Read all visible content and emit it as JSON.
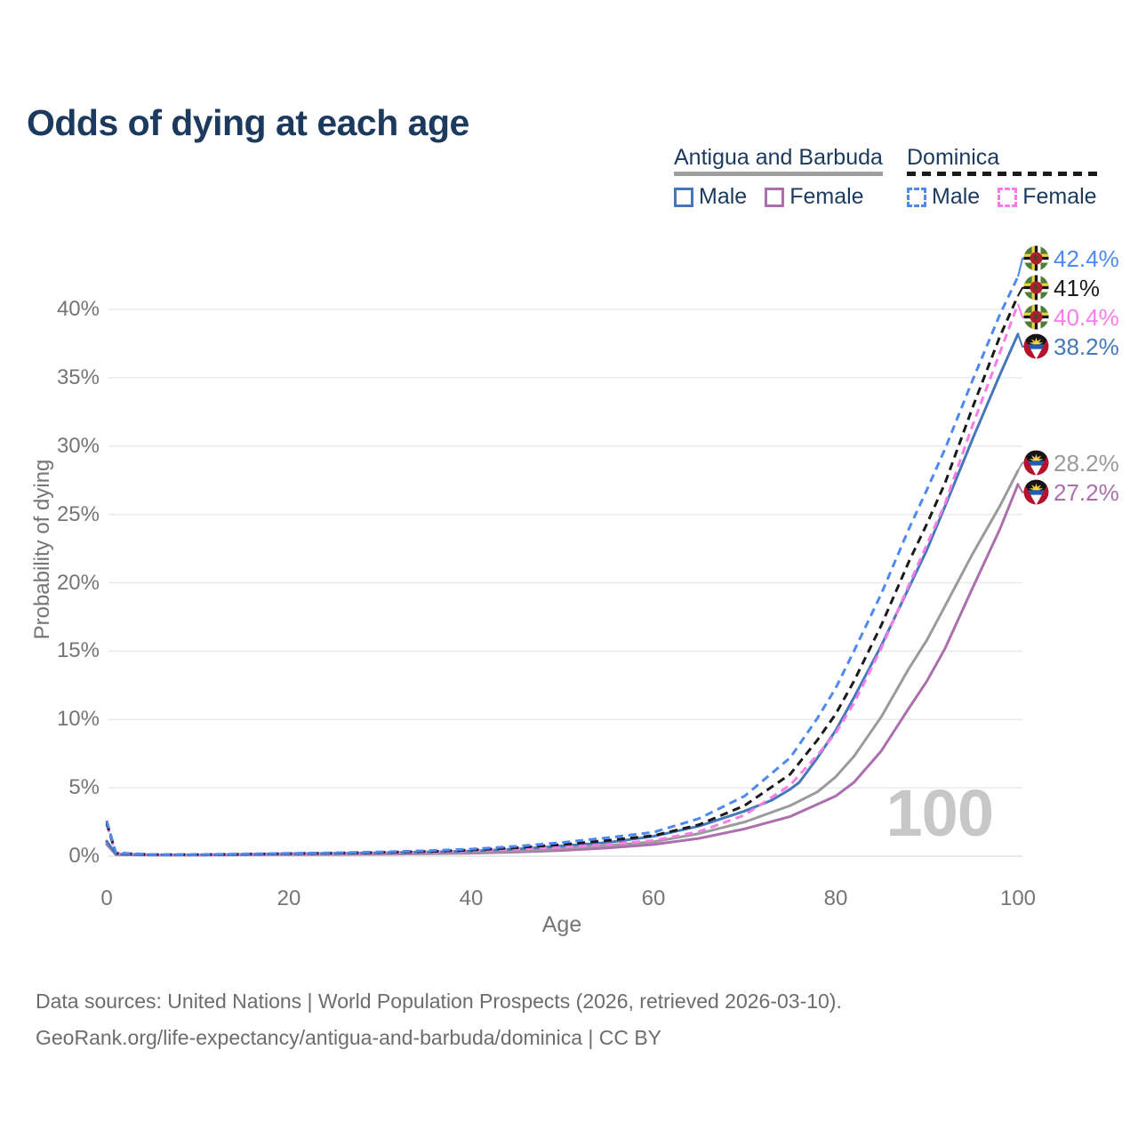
{
  "title": "Odds of dying at each age",
  "legend": {
    "groups": [
      {
        "id": "antigua-and-barbuda",
        "label": "Antigua and Barbuda",
        "line_style": "solid",
        "underline_color": "#9e9e9e",
        "items": [
          {
            "label": "Male",
            "color": "#4478ba"
          },
          {
            "label": "Female",
            "color": "#ab6fad"
          }
        ]
      },
      {
        "id": "dominica",
        "label": "Dominica",
        "line_style": "dashed",
        "underline_color": "#1a1a1a",
        "items": [
          {
            "label": "Male",
            "color": "#4d89f1"
          },
          {
            "label": "Female",
            "color": "#f97ce8"
          }
        ]
      }
    ]
  },
  "chart_data": {
    "type": "line",
    "title": "Odds of dying at each age",
    "xlabel": "Age",
    "ylabel": "Probability of dying",
    "x_ticks": [
      0,
      20,
      40,
      60,
      80,
      100
    ],
    "y_tick_labels": [
      "0%",
      "5%",
      "10%",
      "15%",
      "20%",
      "25%",
      "30%",
      "35%",
      "40%"
    ],
    "xlim": [
      0,
      100
    ],
    "ylim": [
      0,
      44
    ],
    "grid": true,
    "age_watermark": "100",
    "legend_position": "top-right",
    "series": [
      {
        "id": "ab-female",
        "name": "Antigua and Barbuda Female",
        "country": "Antigua and Barbuda",
        "flag": "ag",
        "sex": "Female",
        "color": "#ab6fad",
        "dashed": false,
        "end_label": "27.2%",
        "points": [
          [
            0,
            0.85
          ],
          [
            1,
            0.12
          ],
          [
            5,
            0.08
          ],
          [
            10,
            0.08
          ],
          [
            15,
            0.1
          ],
          [
            20,
            0.12
          ],
          [
            25,
            0.13
          ],
          [
            30,
            0.15
          ],
          [
            35,
            0.18
          ],
          [
            40,
            0.22
          ],
          [
            45,
            0.3
          ],
          [
            50,
            0.42
          ],
          [
            55,
            0.6
          ],
          [
            60,
            0.85
          ],
          [
            65,
            1.3
          ],
          [
            70,
            2.0
          ],
          [
            75,
            2.9
          ],
          [
            78,
            3.8
          ],
          [
            80,
            4.4
          ],
          [
            82,
            5.4
          ],
          [
            85,
            7.7
          ],
          [
            88,
            10.8
          ],
          [
            90,
            12.8
          ],
          [
            92,
            15.2
          ],
          [
            95,
            19.6
          ],
          [
            98,
            23.9
          ],
          [
            100,
            27.2
          ]
        ]
      },
      {
        "id": "ab-total",
        "name": "Antigua and Barbuda",
        "country": "Antigua and Barbuda",
        "flag": "ag",
        "sex": "Both",
        "color": "#9a9a9a",
        "dashed": false,
        "end_label": "28.2%",
        "points": [
          [
            0,
            0.95
          ],
          [
            1,
            0.13
          ],
          [
            5,
            0.09
          ],
          [
            10,
            0.09
          ],
          [
            15,
            0.11
          ],
          [
            20,
            0.14
          ],
          [
            25,
            0.16
          ],
          [
            30,
            0.19
          ],
          [
            35,
            0.22
          ],
          [
            40,
            0.28
          ],
          [
            45,
            0.38
          ],
          [
            50,
            0.55
          ],
          [
            55,
            0.78
          ],
          [
            60,
            1.05
          ],
          [
            65,
            1.65
          ],
          [
            70,
            2.5
          ],
          [
            75,
            3.7
          ],
          [
            78,
            4.7
          ],
          [
            80,
            5.8
          ],
          [
            82,
            7.3
          ],
          [
            85,
            10.2
          ],
          [
            88,
            13.7
          ],
          [
            90,
            15.8
          ],
          [
            92,
            18.3
          ],
          [
            95,
            22.1
          ],
          [
            98,
            25.6
          ],
          [
            100,
            28.2
          ]
        ]
      },
      {
        "id": "ab-male",
        "name": "Antigua and Barbuda Male",
        "country": "Antigua and Barbuda",
        "flag": "ag",
        "sex": "Male",
        "color": "#4478ba",
        "dashed": false,
        "end_label": "38.2%",
        "points": [
          [
            0,
            1.1
          ],
          [
            1,
            0.15
          ],
          [
            5,
            0.1
          ],
          [
            10,
            0.1
          ],
          [
            15,
            0.13
          ],
          [
            20,
            0.18
          ],
          [
            25,
            0.2
          ],
          [
            30,
            0.24
          ],
          [
            35,
            0.3
          ],
          [
            40,
            0.38
          ],
          [
            45,
            0.52
          ],
          [
            50,
            0.75
          ],
          [
            55,
            1.0
          ],
          [
            60,
            1.45
          ],
          [
            65,
            2.2
          ],
          [
            70,
            3.3
          ],
          [
            73,
            4.1
          ],
          [
            75,
            4.9
          ],
          [
            76,
            5.4
          ],
          [
            78,
            7.2
          ],
          [
            80,
            9.2
          ],
          [
            82,
            11.6
          ],
          [
            85,
            15.4
          ],
          [
            88,
            19.6
          ],
          [
            90,
            22.4
          ],
          [
            92,
            25.6
          ],
          [
            95,
            30.5
          ],
          [
            98,
            35.2
          ],
          [
            100,
            38.2
          ]
        ]
      },
      {
        "id": "dm-female",
        "name": "Dominica Female",
        "country": "Dominica",
        "flag": "dm",
        "sex": "Female",
        "color": "#f97ce8",
        "dashed": true,
        "end_label": "40.4%",
        "points": [
          [
            0,
            2.3
          ],
          [
            1,
            0.2
          ],
          [
            5,
            0.1
          ],
          [
            10,
            0.1
          ],
          [
            15,
            0.13
          ],
          [
            20,
            0.17
          ],
          [
            25,
            0.2
          ],
          [
            30,
            0.24
          ],
          [
            35,
            0.3
          ],
          [
            40,
            0.4
          ],
          [
            45,
            0.52
          ],
          [
            50,
            0.65
          ],
          [
            55,
            0.85
          ],
          [
            60,
            1.15
          ],
          [
            65,
            1.8
          ],
          [
            70,
            3.0
          ],
          [
            75,
            5.2
          ],
          [
            78,
            7.4
          ],
          [
            80,
            9.0
          ],
          [
            82,
            11.2
          ],
          [
            85,
            15.2
          ],
          [
            88,
            19.8
          ],
          [
            90,
            22.8
          ],
          [
            92,
            25.8
          ],
          [
            95,
            31.5
          ],
          [
            98,
            36.8
          ],
          [
            100,
            40.4
          ]
        ]
      },
      {
        "id": "dm-total",
        "name": "Dominica",
        "country": "Dominica",
        "flag": "dm",
        "sex": "Both",
        "color": "#1a1a1a",
        "dashed": true,
        "end_label": "41%",
        "points": [
          [
            0,
            2.45
          ],
          [
            1,
            0.22
          ],
          [
            5,
            0.11
          ],
          [
            10,
            0.11
          ],
          [
            15,
            0.14
          ],
          [
            20,
            0.19
          ],
          [
            25,
            0.22
          ],
          [
            30,
            0.27
          ],
          [
            35,
            0.34
          ],
          [
            40,
            0.45
          ],
          [
            45,
            0.62
          ],
          [
            50,
            0.85
          ],
          [
            55,
            1.15
          ],
          [
            60,
            1.5
          ],
          [
            65,
            2.3
          ],
          [
            70,
            3.7
          ],
          [
            75,
            6.0
          ],
          [
            78,
            8.5
          ],
          [
            80,
            10.4
          ],
          [
            82,
            12.8
          ],
          [
            85,
            16.9
          ],
          [
            88,
            21.5
          ],
          [
            90,
            24.3
          ],
          [
            92,
            27.3
          ],
          [
            95,
            32.8
          ],
          [
            98,
            38.0
          ],
          [
            100,
            41.0
          ]
        ]
      },
      {
        "id": "dm-male",
        "name": "Dominica Male",
        "country": "Dominica",
        "flag": "dm",
        "sex": "Male",
        "color": "#4d89f1",
        "dashed": true,
        "end_label": "42.4%",
        "points": [
          [
            0,
            2.6
          ],
          [
            1,
            0.25
          ],
          [
            5,
            0.12
          ],
          [
            10,
            0.12
          ],
          [
            15,
            0.16
          ],
          [
            20,
            0.21
          ],
          [
            25,
            0.25
          ],
          [
            30,
            0.31
          ],
          [
            35,
            0.4
          ],
          [
            40,
            0.52
          ],
          [
            45,
            0.72
          ],
          [
            50,
            1.0
          ],
          [
            55,
            1.35
          ],
          [
            60,
            1.75
          ],
          [
            65,
            2.75
          ],
          [
            70,
            4.4
          ],
          [
            75,
            7.2
          ],
          [
            78,
            10.1
          ],
          [
            80,
            12.3
          ],
          [
            82,
            15.0
          ],
          [
            85,
            19.2
          ],
          [
            88,
            23.9
          ],
          [
            90,
            26.8
          ],
          [
            92,
            29.8
          ],
          [
            95,
            34.8
          ],
          [
            98,
            39.6
          ],
          [
            100,
            42.4
          ]
        ]
      }
    ]
  },
  "footer": {
    "line1": "Data sources: United Nations | World Population Prospects (2026, retrieved 2026-03-10).",
    "line2": "GeoRank.org/life-expectancy/antigua-and-barbuda/dominica | CC BY"
  }
}
